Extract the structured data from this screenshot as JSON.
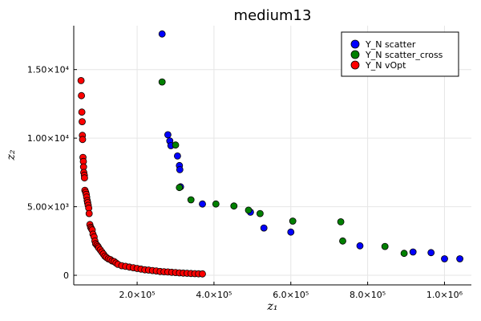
{
  "chart_data": {
    "type": "scatter",
    "title": "medium13",
    "xlabel": "z₁",
    "ylabel": "z₂",
    "xlim": [
      35000,
      1070000
    ],
    "ylim": [
      -700,
      18200
    ],
    "xticks": [
      {
        "value": 200000,
        "label": "2.0×10⁵"
      },
      {
        "value": 400000,
        "label": "4.0×10⁵"
      },
      {
        "value": 600000,
        "label": "6.0×10⁵"
      },
      {
        "value": 800000,
        "label": "8.0×10⁵"
      },
      {
        "value": 1000000,
        "label": "1.0×10⁶"
      }
    ],
    "yticks": [
      {
        "value": 0,
        "label": "0"
      },
      {
        "value": 5000,
        "label": "5.00×10³"
      },
      {
        "value": 10000,
        "label": "1.00×10⁴"
      },
      {
        "value": 15000,
        "label": "1.50×10⁴"
      }
    ],
    "grid": true,
    "legend_position": "top-right",
    "series": [
      {
        "name": "Y_N scatter",
        "color": "#0000ff",
        "points": [
          [
            265000,
            17600
          ],
          [
            280000,
            10250
          ],
          [
            285000,
            9800
          ],
          [
            288000,
            9450
          ],
          [
            305000,
            8700
          ],
          [
            310000,
            8000
          ],
          [
            311000,
            7700
          ],
          [
            313000,
            6450
          ],
          [
            370000,
            5200
          ],
          [
            495000,
            4600
          ],
          [
            530000,
            3450
          ],
          [
            600000,
            3150
          ],
          [
            780000,
            2150
          ],
          [
            918000,
            1700
          ],
          [
            965000,
            1650
          ],
          [
            1000000,
            1200
          ],
          [
            1040000,
            1200
          ]
        ]
      },
      {
        "name": "Y_N scatter_cross",
        "color": "#008000",
        "points": [
          [
            265000,
            14100
          ],
          [
            300000,
            9500
          ],
          [
            310000,
            6400
          ],
          [
            340000,
            5500
          ],
          [
            405000,
            5200
          ],
          [
            452000,
            5050
          ],
          [
            490000,
            4750
          ],
          [
            520000,
            4500
          ],
          [
            605000,
            3950
          ],
          [
            730000,
            3900
          ],
          [
            735000,
            2500
          ],
          [
            845000,
            2100
          ],
          [
            895000,
            1600
          ]
        ]
      },
      {
        "name": "Y_N vOpt",
        "color": "#ff0000",
        "points": [
          [
            54000,
            14200
          ],
          [
            55000,
            13100
          ],
          [
            56000,
            11900
          ],
          [
            57000,
            11200
          ],
          [
            57500,
            10200
          ],
          [
            58000,
            9900
          ],
          [
            59000,
            8600
          ],
          [
            60000,
            8300
          ],
          [
            60500,
            7900
          ],
          [
            61000,
            7500
          ],
          [
            62500,
            7300
          ],
          [
            63000,
            7100
          ],
          [
            64000,
            6200
          ],
          [
            66000,
            6050
          ],
          [
            67500,
            5900
          ],
          [
            68500,
            5700
          ],
          [
            70000,
            5450
          ],
          [
            71000,
            5300
          ],
          [
            72500,
            5100
          ],
          [
            74000,
            4900
          ],
          [
            75000,
            4500
          ],
          [
            77000,
            3700
          ],
          [
            79000,
            3500
          ],
          [
            81000,
            3400
          ],
          [
            83000,
            3300
          ],
          [
            85000,
            3000
          ],
          [
            88000,
            2800
          ],
          [
            90000,
            2500
          ],
          [
            92000,
            2300
          ],
          [
            95000,
            2200
          ],
          [
            98000,
            2100
          ],
          [
            100000,
            2000
          ],
          [
            104000,
            1850
          ],
          [
            108000,
            1700
          ],
          [
            112000,
            1550
          ],
          [
            116000,
            1400
          ],
          [
            120000,
            1300
          ],
          [
            125000,
            1200
          ],
          [
            130000,
            1150
          ],
          [
            135000,
            1050
          ],
          [
            140000,
            1000
          ],
          [
            145000,
            900
          ],
          [
            150000,
            800
          ],
          [
            160000,
            700
          ],
          [
            170000,
            650
          ],
          [
            180000,
            600
          ],
          [
            190000,
            550
          ],
          [
            200000,
            500
          ],
          [
            210000,
            450
          ],
          [
            220000,
            400
          ],
          [
            230000,
            380
          ],
          [
            240000,
            350
          ],
          [
            250000,
            320
          ],
          [
            260000,
            280
          ],
          [
            270000,
            260
          ],
          [
            280000,
            240
          ],
          [
            290000,
            220
          ],
          [
            300000,
            200
          ],
          [
            310000,
            180
          ],
          [
            320000,
            160
          ],
          [
            330000,
            150
          ],
          [
            340000,
            130
          ],
          [
            350000,
            120
          ],
          [
            360000,
            110
          ],
          [
            370000,
            100
          ]
        ]
      }
    ]
  }
}
